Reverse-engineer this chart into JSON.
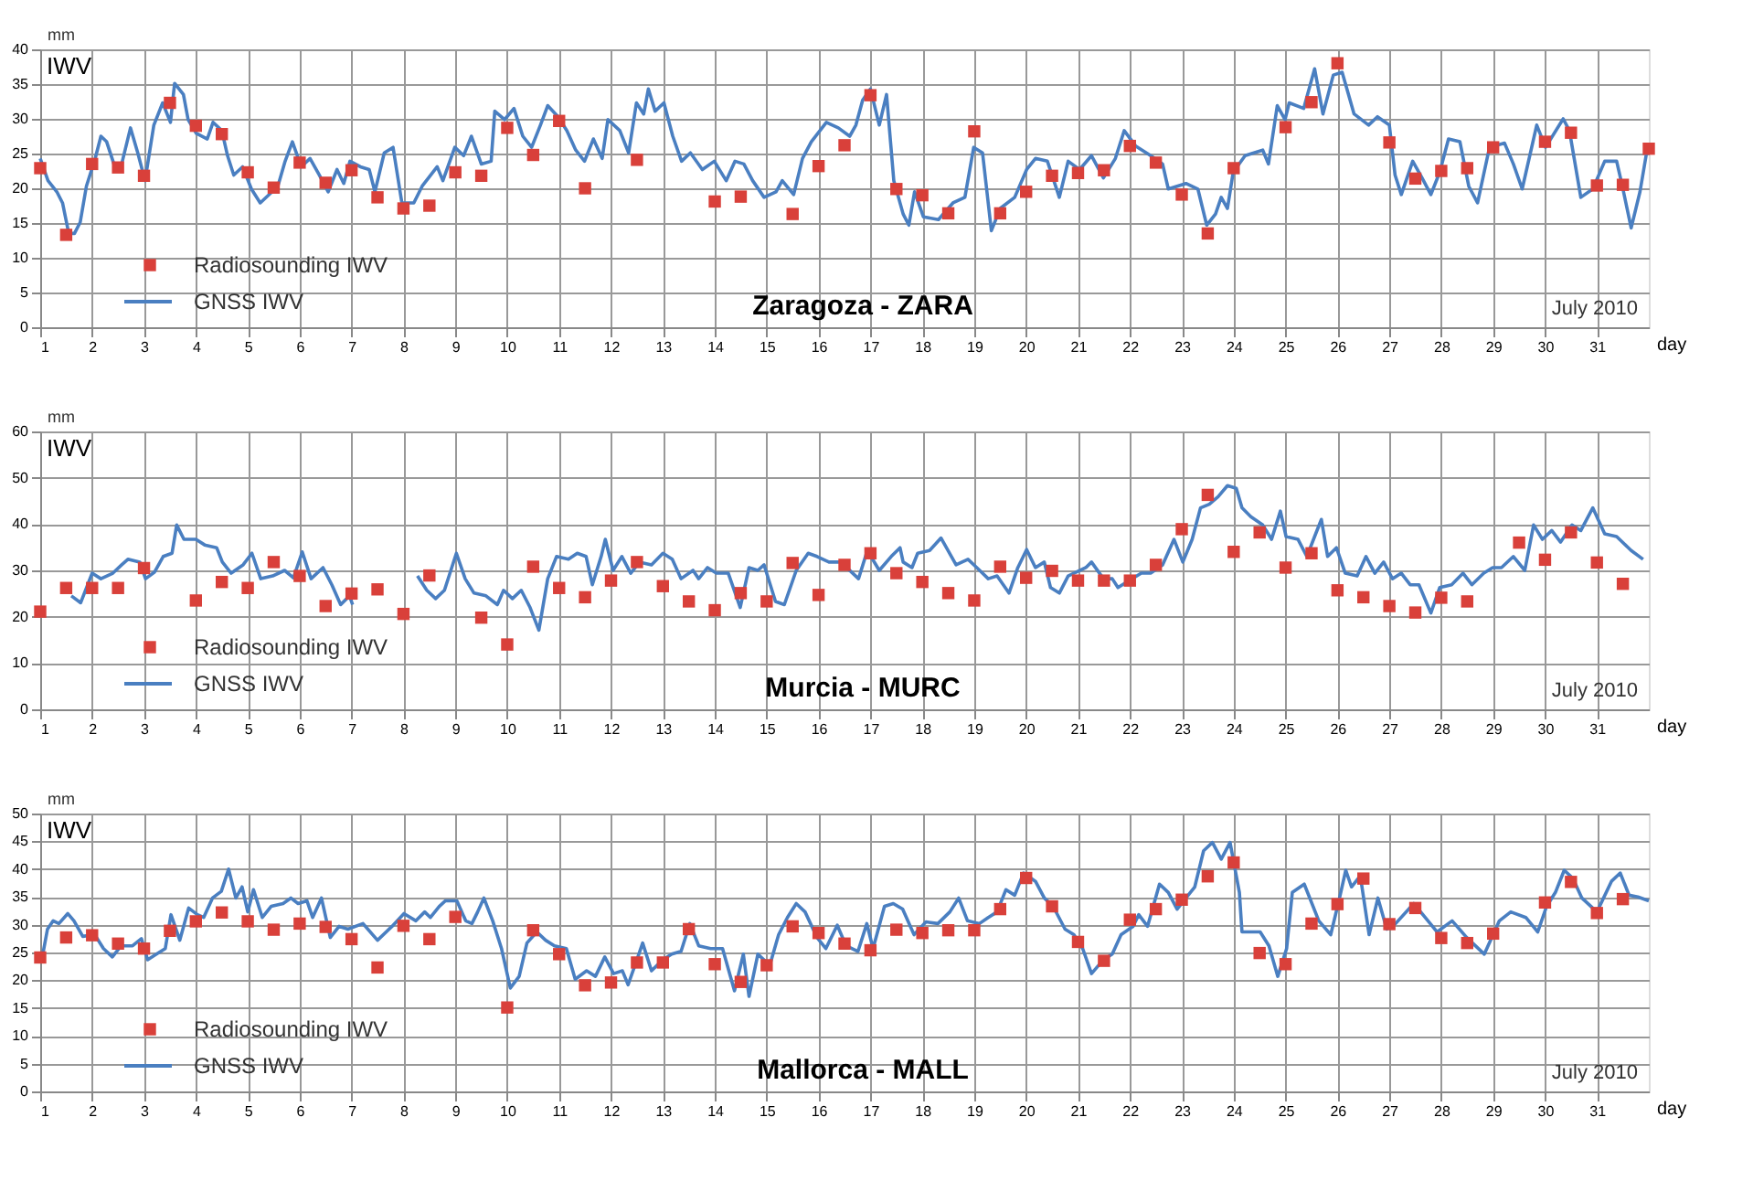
{
  "chart_data": [
    {
      "type": "line",
      "title": "Zaragoza - ZARA",
      "xlabel": "day",
      "ylabel": "IWV",
      "annotations": [
        "mm",
        "July 2010"
      ],
      "xlim": [
        1,
        32
      ],
      "xticks": [
        1,
        2,
        3,
        4,
        5,
        6,
        7,
        8,
        9,
        10,
        11,
        12,
        13,
        14,
        15,
        16,
        17,
        18,
        19,
        20,
        21,
        22,
        23,
        24,
        25,
        26,
        27,
        28,
        29,
        30,
        31
      ],
      "ylim": [
        0,
        40
      ],
      "yticks": [
        0,
        5,
        10,
        15,
        20,
        25,
        30,
        35,
        40
      ],
      "grid": true,
      "legend": "bottom left",
      "series": [
        {
          "name": "Radiosounding IWV",
          "type": "scatter",
          "marker": "square",
          "color": "#d9403a",
          "x": [
            1,
            1.5,
            2,
            2.5,
            3,
            3.5,
            4,
            4.5,
            5,
            5.5,
            6,
            6.5,
            7,
            7.5,
            8,
            8.5,
            9,
            9.5,
            10,
            10.5,
            11,
            11.5,
            12.5,
            14,
            14.5,
            15.5,
            16,
            16.5,
            17,
            17.5,
            18,
            18.5,
            19,
            19.5,
            20,
            20.5,
            21,
            21.5,
            22,
            22.5,
            23,
            23.5,
            24,
            25,
            25.5,
            26,
            27,
            27.5,
            28,
            28.5,
            29,
            30,
            30.5,
            31,
            31.5,
            32
          ],
          "values": [
            22.9,
            13.3,
            23.5,
            23.0,
            21.8,
            32.3,
            29.0,
            27.8,
            22.3,
            20.1,
            23.7,
            20.8,
            22.6,
            18.7,
            17.1,
            17.5,
            22.3,
            21.8,
            28.7,
            24.8,
            29.7,
            20.0,
            24.1,
            18.1,
            18.8,
            16.3,
            23.2,
            26.2,
            33.4,
            19.9,
            19.0,
            16.4,
            28.2,
            16.4,
            19.5,
            21.8,
            22.2,
            22.6,
            26.1,
            23.7,
            19.1,
            13.5,
            22.9,
            28.8,
            32.4,
            38.0,
            26.6,
            21.4,
            22.5,
            22.9,
            25.9,
            26.7,
            28.0,
            20.4,
            20.5,
            25.7
          ]
        },
        {
          "name": "GNSS IWV",
          "type": "line",
          "color": "#4a7fc1",
          "x": [
            1.0,
            1.15,
            1.32,
            1.43,
            1.55,
            1.66,
            1.77,
            1.89,
            2.06,
            2.17,
            2.28,
            2.42,
            2.57,
            2.74,
            2.88,
            3.02,
            3.19,
            3.36,
            3.51,
            3.59,
            3.76,
            3.85,
            4.01,
            4.22,
            4.33,
            4.5,
            4.61,
            4.73,
            4.9,
            5.07,
            5.24,
            5.47,
            5.58,
            5.72,
            5.86,
            6.03,
            6.2,
            6.38,
            6.55,
            6.72,
            6.85,
            6.97,
            7.17,
            7.34,
            7.45,
            7.63,
            7.8,
            7.97,
            8.2,
            8.36,
            8.65,
            8.76,
            8.99,
            9.16,
            9.31,
            9.5,
            9.69,
            9.76,
            9.95,
            10.13,
            10.3,
            10.47,
            10.64,
            10.78,
            10.98,
            11.15,
            11.32,
            11.49,
            11.66,
            11.83,
            11.94,
            12.17,
            12.34,
            12.49,
            12.63,
            12.72,
            12.85,
            13.02,
            13.19,
            13.36,
            13.53,
            13.76,
            13.99,
            14.22,
            14.39,
            14.56,
            14.73,
            14.95,
            15.18,
            15.3,
            15.52,
            15.69,
            15.86,
            16.15,
            16.38,
            16.6,
            16.72,
            16.85,
            17.0,
            17.17,
            17.31,
            17.45,
            17.63,
            17.74,
            17.85,
            18.02,
            18.31,
            18.59,
            18.82,
            18.99,
            19.16,
            19.33,
            19.5,
            19.78,
            20.01,
            20.18,
            20.41,
            20.64,
            20.81,
            21.03,
            21.26,
            21.49,
            21.72,
            21.89,
            22.11,
            22.4,
            22.63,
            22.74,
            23.08,
            23.31,
            23.48,
            23.65,
            23.76,
            23.88,
            23.99,
            24.22,
            24.56,
            24.67,
            24.84,
            24.99,
            25.07,
            25.35,
            25.56,
            25.72,
            25.92,
            26.09,
            26.32,
            26.6,
            26.77,
            27.0,
            27.11,
            27.23,
            27.45,
            27.63,
            27.8,
            27.97,
            28.14,
            28.36,
            28.53,
            28.7,
            28.93,
            29.22,
            29.39,
            29.56,
            29.84,
            30.01,
            30.35,
            30.47,
            30.69,
            30.92,
            31.15,
            31.38,
            31.49,
            31.66,
            31.83,
            31.97
          ],
          "values": [
            24.3,
            21.1,
            19.5,
            17.9,
            13.5,
            13.5,
            15.1,
            20.3,
            24.3,
            27.5,
            26.7,
            23.5,
            23.5,
            28.7,
            25.1,
            21.1,
            29.1,
            32.3,
            29.5,
            35.1,
            33.5,
            29.9,
            27.9,
            27.1,
            29.5,
            28.3,
            24.7,
            21.9,
            23.1,
            19.9,
            17.9,
            19.5,
            20.3,
            23.9,
            26.7,
            23.1,
            24.3,
            21.9,
            19.5,
            22.7,
            20.7,
            23.9,
            23.1,
            22.7,
            19.5,
            25.1,
            25.9,
            17.9,
            17.9,
            20.3,
            23.1,
            21.1,
            25.9,
            24.7,
            27.5,
            23.5,
            23.9,
            31.1,
            29.9,
            31.5,
            27.5,
            25.9,
            29.1,
            31.9,
            30.3,
            28.3,
            25.5,
            23.9,
            27.1,
            24.3,
            29.9,
            28.3,
            25.1,
            32.3,
            30.7,
            34.3,
            31.1,
            32.3,
            27.5,
            23.9,
            25.1,
            22.7,
            23.9,
            21.1,
            23.9,
            23.5,
            21.1,
            18.7,
            19.5,
            21.1,
            19.1,
            24.3,
            26.7,
            29.5,
            28.7,
            27.5,
            29.1,
            32.7,
            34.3,
            29.1,
            33.5,
            21.1,
            16.3,
            14.7,
            19.5,
            15.9,
            15.5,
            17.9,
            18.7,
            25.9,
            25.1,
            13.9,
            17.1,
            18.7,
            22.7,
            24.3,
            23.9,
            18.7,
            23.9,
            22.7,
            24.7,
            21.5,
            24.3,
            28.3,
            26.1,
            24.7,
            23.5,
            19.9,
            20.7,
            19.9,
            14.7,
            16.3,
            18.7,
            17.1,
            22.3,
            24.7,
            25.5,
            23.5,
            31.9,
            29.9,
            32.3,
            31.5,
            37.2,
            30.7,
            36.3,
            36.7,
            30.7,
            29.1,
            30.3,
            29.1,
            21.9,
            19.1,
            23.9,
            21.5,
            19.1,
            22.3,
            27.1,
            26.7,
            20.3,
            17.9,
            25.9,
            26.5,
            23.5,
            19.9,
            29.1,
            25.9,
            30.0,
            28.3,
            18.7,
            19.9,
            23.9,
            23.9,
            20.3,
            14.3,
            19.5,
            25.7
          ]
        }
      ]
    },
    {
      "type": "line",
      "title": "Murcia - MURC",
      "xlabel": "day",
      "ylabel": "IWV",
      "annotations": [
        "mm",
        "July 2010"
      ],
      "xlim": [
        1,
        32
      ],
      "xticks": [
        1,
        2,
        3,
        4,
        5,
        6,
        7,
        8,
        9,
        10,
        11,
        12,
        13,
        14,
        15,
        16,
        17,
        18,
        19,
        20,
        21,
        22,
        23,
        24,
        25,
        26,
        27,
        28,
        29,
        30,
        31
      ],
      "ylim": [
        0,
        60
      ],
      "yticks": [
        0,
        10,
        20,
        30,
        40,
        50,
        60
      ],
      "grid": true,
      "legend": "bottom left",
      "series": [
        {
          "name": "Radiosounding IWV",
          "type": "scatter",
          "marker": "square",
          "color": "#d9403a",
          "x": [
            1,
            1.5,
            2,
            2.5,
            3,
            4,
            4.5,
            5,
            5.5,
            6,
            6.5,
            7,
            7.5,
            8,
            8.5,
            9.5,
            10,
            10.5,
            11,
            11.5,
            12,
            12.5,
            13,
            13.5,
            14,
            14.5,
            15,
            15.5,
            16,
            16.5,
            17,
            17.5,
            18,
            18.5,
            19,
            19.5,
            20,
            20.5,
            21,
            21.5,
            22,
            22.5,
            23,
            23.5,
            24,
            24.5,
            25,
            25.5,
            26,
            26.5,
            27,
            27.5,
            28,
            28.5,
            29.5,
            30,
            30.5,
            31,
            31.5
          ],
          "values": [
            21.1,
            26.2,
            26.2,
            26.2,
            30.5,
            23.5,
            27.5,
            26.2,
            31.8,
            28.8,
            22.3,
            25.0,
            25.9,
            20.6,
            28.9,
            19.8,
            14.0,
            30.8,
            26.2,
            24.2,
            27.8,
            31.8,
            26.6,
            23.3,
            21.4,
            25.1,
            23.3,
            31.6,
            24.7,
            31.2,
            33.7,
            29.4,
            27.5,
            25.1,
            23.5,
            30.8,
            28.4,
            29.9,
            27.8,
            27.8,
            27.8,
            31.2,
            38.9,
            46.3,
            34.0,
            38.2,
            30.6,
            33.7,
            25.7,
            24.2,
            22.3,
            20.9,
            24.1,
            23.3,
            36.0,
            32.3,
            38.2,
            31.7,
            27.1
          ]
        },
        {
          "name": "GNSS IWV",
          "type": "line",
          "color": "#4a7fc1",
          "x": [
            1.6,
            1.78,
            2.0,
            2.17,
            2.4,
            2.57,
            2.69,
            2.92,
            3.03,
            3.2,
            3.37,
            3.54,
            3.63,
            3.77,
            4.0,
            4.17,
            4.4,
            4.51,
            4.68,
            4.91,
            5.08,
            5.25,
            5.48,
            5.71,
            5.88,
            6.05,
            6.22,
            6.45,
            6.62,
            6.79,
            6.96,
            7.02,
            7.6,
            8.27,
            8.45,
            8.62,
            8.79,
            9.02,
            9.19,
            9.36,
            9.59,
            9.81,
            9.93,
            10.1,
            10.27,
            10.44,
            10.61,
            10.78,
            10.95,
            11.18,
            11.35,
            11.52,
            11.64,
            11.81,
            11.89,
            12.04,
            12.21,
            12.38,
            12.55,
            12.78,
            13.0,
            13.18,
            13.35,
            13.58,
            13.69,
            13.86,
            14.03,
            14.26,
            14.49,
            14.66,
            14.83,
            14.95,
            15.17,
            15.34,
            15.57,
            15.8,
            15.97,
            16.2,
            16.43,
            16.77,
            16.94,
            17.17,
            17.4,
            17.57,
            17.63,
            17.8,
            17.91,
            18.14,
            18.36,
            18.65,
            18.88,
            19.05,
            19.27,
            19.44,
            19.67,
            19.84,
            20.01,
            20.18,
            20.35,
            20.47,
            20.64,
            20.81,
            21.15,
            21.26,
            21.49,
            21.66,
            21.77,
            21.94,
            22.22,
            22.4,
            22.63,
            22.85,
            23.02,
            23.2,
            23.36,
            23.53,
            23.7,
            23.88,
            24.05,
            24.16,
            24.33,
            24.56,
            24.73,
            24.9,
            25.01,
            25.24,
            25.41,
            25.58,
            25.69,
            25.81,
            25.98,
            26.15,
            26.38,
            26.55,
            26.72,
            26.89,
            27.06,
            27.23,
            27.4,
            27.57,
            27.8,
            27.97,
            28.2,
            28.42,
            28.59,
            28.82,
            28.99,
            29.16,
            29.39,
            29.61,
            29.78,
            29.95,
            30.13,
            30.3,
            30.52,
            30.69,
            30.92,
            31.15,
            31.38,
            31.66,
            31.89
          ],
          "values": [
            24.5,
            23.0,
            29.4,
            28.2,
            29.4,
            31.2,
            32.4,
            31.8,
            28.2,
            29.6,
            33.0,
            33.7,
            39.8,
            36.7,
            36.7,
            35.5,
            34.9,
            31.8,
            29.4,
            31.2,
            33.7,
            28.2,
            28.8,
            30.0,
            28.4,
            34.0,
            28.2,
            30.6,
            26.9,
            22.6,
            24.5,
            22.6,
            null,
            28.8,
            25.7,
            23.9,
            25.7,
            33.7,
            28.2,
            25.1,
            24.5,
            22.6,
            25.7,
            23.9,
            25.7,
            22.0,
            17.1,
            28.2,
            33.0,
            32.4,
            33.7,
            33.0,
            26.9,
            33.0,
            36.7,
            30.0,
            33.0,
            29.4,
            31.8,
            31.2,
            33.7,
            32.4,
            28.2,
            30.0,
            28.2,
            30.6,
            29.4,
            29.4,
            22.0,
            30.6,
            30.0,
            31.2,
            23.3,
            22.6,
            30.0,
            33.7,
            33.0,
            31.8,
            31.8,
            28.2,
            34.3,
            30.0,
            33.0,
            34.9,
            31.8,
            30.6,
            33.7,
            34.3,
            37.0,
            31.2,
            32.4,
            30.6,
            28.2,
            28.8,
            25.1,
            30.6,
            34.5,
            30.6,
            31.8,
            26.3,
            25.1,
            28.8,
            30.6,
            31.8,
            28.2,
            28.2,
            26.3,
            27.5,
            29.4,
            29.4,
            31.2,
            36.7,
            31.8,
            36.7,
            43.5,
            44.3,
            45.9,
            48.3,
            47.7,
            43.5,
            41.6,
            39.8,
            36.7,
            42.8,
            37.3,
            36.7,
            33.0,
            37.9,
            41.0,
            33.0,
            34.9,
            29.4,
            28.8,
            33.0,
            29.4,
            31.8,
            28.2,
            29.4,
            26.9,
            26.9,
            20.8,
            26.3,
            26.9,
            29.4,
            26.9,
            29.4,
            30.6,
            30.6,
            33.0,
            30.0,
            39.8,
            36.7,
            38.6,
            36.1,
            39.8,
            38.6,
            43.5,
            37.9,
            37.3,
            34.3,
            32.4
          ]
        }
      ]
    },
    {
      "type": "line",
      "title": "Mallorca - MALL",
      "xlabel": "day",
      "ylabel": "IWV",
      "annotations": [
        "mm",
        "July 2010"
      ],
      "xlim": [
        1,
        32
      ],
      "xticks": [
        1,
        2,
        3,
        4,
        5,
        6,
        7,
        8,
        9,
        10,
        11,
        12,
        13,
        14,
        15,
        16,
        17,
        18,
        19,
        20,
        21,
        22,
        23,
        24,
        25,
        26,
        27,
        28,
        29,
        30,
        31
      ],
      "ylim": [
        0,
        50
      ],
      "yticks": [
        0,
        5,
        10,
        15,
        20,
        25,
        30,
        35,
        40,
        45,
        50
      ],
      "grid": true,
      "legend": "bottom left",
      "series": [
        {
          "name": "Radiosounding IWV",
          "type": "scatter",
          "marker": "square",
          "color": "#d9403a",
          "x": [
            1,
            1.5,
            2,
            2.5,
            3,
            3.5,
            4,
            4.5,
            5,
            5.5,
            6,
            6.5,
            7,
            7.5,
            8,
            8.5,
            9,
            10,
            10.5,
            11,
            11.5,
            12,
            12.5,
            13,
            13.5,
            14,
            14.5,
            15,
            15.5,
            16,
            16.5,
            17,
            17.5,
            18,
            18.5,
            19,
            19.5,
            20,
            20.5,
            21,
            21.5,
            22,
            22.5,
            23,
            23.5,
            24,
            24.5,
            25,
            25.5,
            26,
            26.5,
            27,
            27.5,
            28,
            28.5,
            29,
            30,
            30.5,
            31,
            31.5
          ],
          "values": [
            24.1,
            27.7,
            28.1,
            26.6,
            25.7,
            28.9,
            30.6,
            32.2,
            30.6,
            29.1,
            30.2,
            29.6,
            27.4,
            22.3,
            29.8,
            27.4,
            31.4,
            15.1,
            29.0,
            24.7,
            19.1,
            19.6,
            23.2,
            23.2,
            29.2,
            22.9,
            19.7,
            22.7,
            29.7,
            28.5,
            26.6,
            25.4,
            29.1,
            28.5,
            29.0,
            29.0,
            32.8,
            38.4,
            33.3,
            26.9,
            23.5,
            30.9,
            32.8,
            34.5,
            38.7,
            41.2,
            24.9,
            22.9,
            30.2,
            33.7,
            38.3,
            30.1,
            33.0,
            27.6,
            26.7,
            28.4,
            34.0,
            37.7,
            32.1,
            34.6
          ]
        },
        {
          "name": "GNSS IWV",
          "type": "line",
          "color": "#4a7fc1",
          "x": [
            1.05,
            1.14,
            1.25,
            1.36,
            1.53,
            1.65,
            1.82,
            2.05,
            2.22,
            2.39,
            2.56,
            2.78,
            2.95,
            3.07,
            3.24,
            3.41,
            3.52,
            3.69,
            3.86,
            4.03,
            4.15,
            4.32,
            4.49,
            4.63,
            4.77,
            4.89,
            5.0,
            5.11,
            5.28,
            5.45,
            5.68,
            5.83,
            5.97,
            6.14,
            6.25,
            6.42,
            6.59,
            6.76,
            6.93,
            7.22,
            7.5,
            7.78,
            8.01,
            8.24,
            8.41,
            8.52,
            8.69,
            8.81,
            9.03,
            9.2,
            9.32,
            9.43,
            9.55,
            9.72,
            9.89,
            10.06,
            10.23,
            10.38,
            10.57,
            10.74,
            10.91,
            11.14,
            11.31,
            11.53,
            11.7,
            11.88,
            12.05,
            12.22,
            12.33,
            12.5,
            12.61,
            12.78,
            13.0,
            13.17,
            13.35,
            13.52,
            13.69,
            13.92,
            14.15,
            14.38,
            14.55,
            14.66,
            14.83,
            15.06,
            15.23,
            15.4,
            15.57,
            15.74,
            15.97,
            16.14,
            16.36,
            16.53,
            16.76,
            16.93,
            17.05,
            17.27,
            17.44,
            17.62,
            17.84,
            18.07,
            18.3,
            18.53,
            18.7,
            18.87,
            19.1,
            19.27,
            19.44,
            19.61,
            19.78,
            19.95,
            20.18,
            20.35,
            20.52,
            20.75,
            20.92,
            21.09,
            21.26,
            21.49,
            21.66,
            21.83,
            22.06,
            22.17,
            22.34,
            22.57,
            22.74,
            22.91,
            23.08,
            23.25,
            23.42,
            23.59,
            23.76,
            23.93,
            24.11,
            24.16,
            24.51,
            24.68,
            24.85,
            25.02,
            25.13,
            25.36,
            25.64,
            25.87,
            26.04,
            26.16,
            26.27,
            26.44,
            26.61,
            26.78,
            26.95,
            27.12,
            27.47,
            27.69,
            27.92,
            28.21,
            28.49,
            28.83,
            29.12,
            29.34,
            29.63,
            29.86,
            30.03,
            30.2,
            30.37,
            30.54,
            30.71,
            31.0,
            31.28,
            31.45,
            31.62,
            31.79,
            32.0
          ],
          "values": [
            24.7,
            29.2,
            30.7,
            30.2,
            32.0,
            30.7,
            27.9,
            28.2,
            25.7,
            24.2,
            26.2,
            26.2,
            27.5,
            23.7,
            24.7,
            25.7,
            31.8,
            27.2,
            33.0,
            31.8,
            31.3,
            34.8,
            36.0,
            40.0,
            34.8,
            36.8,
            32.3,
            36.3,
            31.3,
            33.3,
            33.8,
            34.8,
            33.8,
            34.3,
            31.3,
            34.8,
            27.7,
            29.7,
            29.2,
            30.2,
            27.2,
            29.7,
            32.0,
            30.7,
            32.3,
            31.3,
            33.3,
            34.3,
            34.3,
            30.7,
            30.2,
            32.3,
            34.8,
            30.7,
            25.7,
            18.6,
            20.7,
            26.7,
            28.7,
            27.2,
            26.2,
            25.7,
            20.2,
            21.7,
            20.7,
            24.2,
            21.2,
            21.7,
            19.2,
            23.7,
            26.7,
            21.7,
            23.7,
            24.7,
            25.2,
            30.2,
            26.2,
            25.7,
            25.7,
            18.1,
            24.7,
            17.1,
            24.7,
            22.7,
            28.2,
            31.3,
            33.8,
            32.3,
            27.7,
            25.7,
            29.9,
            26.2,
            25.2,
            30.2,
            25.7,
            33.3,
            33.8,
            32.8,
            28.2,
            30.5,
            30.2,
            32.3,
            34.8,
            30.7,
            30.2,
            31.3,
            32.3,
            36.3,
            35.3,
            39.3,
            37.8,
            34.8,
            33.3,
            29.2,
            28.2,
            25.7,
            21.2,
            23.7,
            24.7,
            28.2,
            29.7,
            31.8,
            29.7,
            37.3,
            35.8,
            32.8,
            34.8,
            36.8,
            43.3,
            44.8,
            41.8,
            44.8,
            35.8,
            28.7,
            28.7,
            26.2,
            20.7,
            25.7,
            35.8,
            37.3,
            30.7,
            28.2,
            34.8,
            39.8,
            36.8,
            38.8,
            28.2,
            34.8,
            29.2,
            30.2,
            33.8,
            31.3,
            28.7,
            30.7,
            27.7,
            24.7,
            30.7,
            32.3,
            31.3,
            28.7,
            33.3,
            35.8,
            39.8,
            38.3,
            34.8,
            32.3,
            37.8,
            39.3,
            35.3,
            35.0,
            34.3
          ]
        }
      ]
    }
  ]
}
